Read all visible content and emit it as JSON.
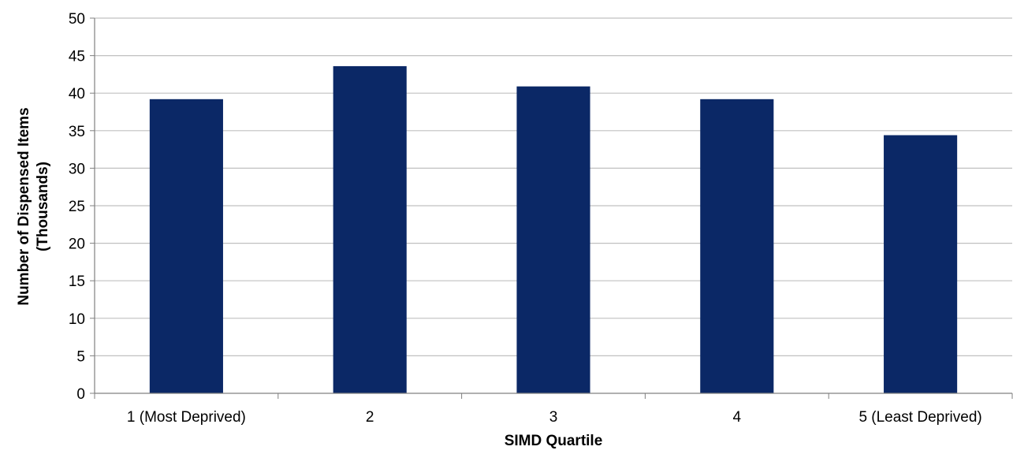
{
  "chart_data": {
    "type": "bar",
    "title": "",
    "categories": [
      "1 (Most Deprived)",
      "2",
      "3",
      "4",
      "5 (Least Deprived)"
    ],
    "values": [
      39.2,
      43.6,
      40.9,
      39.2,
      34.4
    ],
    "xlabel": "SIMD Quartile",
    "ylabel_line1": "Number of Dispensed Items",
    "ylabel_line2": "(Thousands)",
    "ylim": [
      0,
      50
    ],
    "yticks": [
      0,
      5,
      10,
      15,
      20,
      25,
      30,
      35,
      40,
      45,
      50
    ],
    "grid": true,
    "legend": "none",
    "bar_color": "#0b2866",
    "grid_color": "#c0c0c0",
    "axis_color": "#808080"
  }
}
